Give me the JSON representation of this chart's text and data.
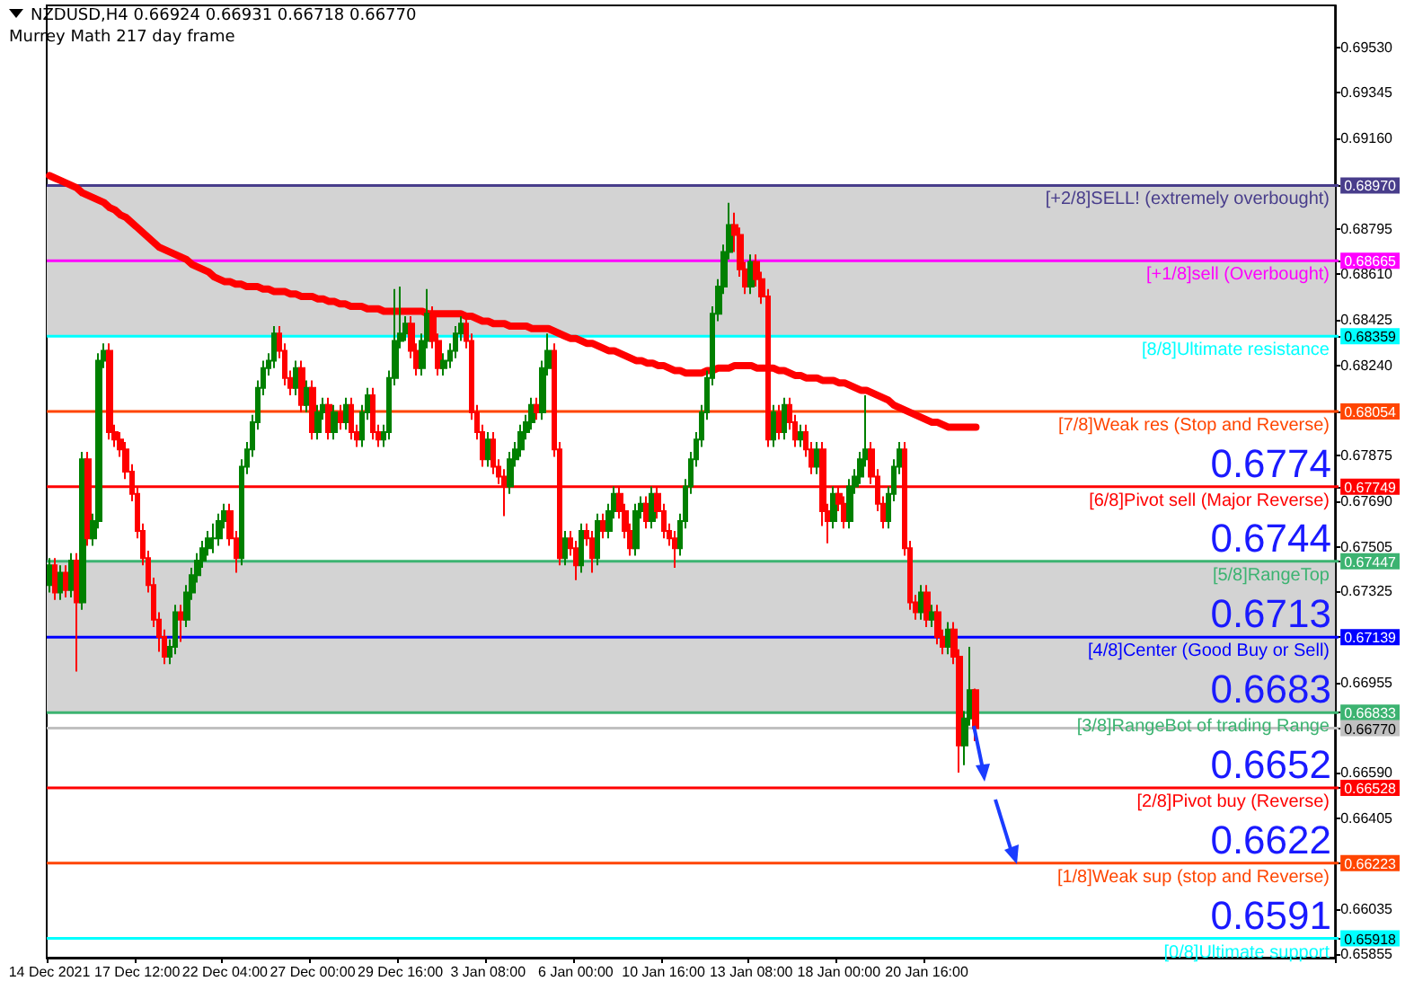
{
  "chart_data": {
    "type": "candlestick",
    "title": "NZDUSD,H4  0.66924 0.66931 0.66718 0.66770",
    "subtitle": "Murrey Math 217 day frame",
    "categories": [
      "14 Dec 2021",
      null,
      null,
      null,
      null,
      null,
      null,
      null,
      null,
      null,
      null,
      null,
      null,
      null,
      null,
      null,
      "17 Dec 12:00",
      null,
      null,
      null,
      null,
      null,
      null,
      null,
      null,
      null,
      null,
      null,
      null,
      null,
      null,
      null,
      "22 Dec 04:00",
      null,
      null,
      null,
      null,
      null,
      null,
      null,
      null,
      null,
      null,
      null,
      null,
      null,
      null,
      null,
      "27 Dec 00:00",
      null,
      null,
      null,
      null,
      null,
      null,
      null,
      null,
      null,
      null,
      null,
      null,
      null,
      null,
      null,
      "29 Dec 16:00",
      null,
      null,
      null,
      null,
      null,
      null,
      null,
      null,
      null,
      null,
      null,
      null,
      null,
      null,
      null,
      "3 Jan 08:00",
      null,
      null,
      null,
      null,
      null,
      null,
      null,
      null,
      null,
      null,
      null,
      null,
      null,
      null,
      null,
      "6 Jan 00:00",
      null,
      null,
      null,
      null,
      null,
      null,
      null,
      null,
      null,
      null,
      null,
      null,
      null,
      null,
      null,
      "10 Jan 16:00",
      null,
      null,
      null,
      null,
      null,
      null,
      null,
      null,
      null,
      null,
      null,
      null,
      null,
      null,
      null,
      "13 Jan 08:00",
      null,
      null,
      null,
      null,
      null,
      null,
      null,
      null,
      null,
      null,
      null,
      null,
      null,
      null,
      null,
      "18 Jan 00:00",
      null,
      null,
      null,
      null,
      null,
      null,
      null,
      null,
      null,
      null,
      null,
      null,
      null,
      null,
      null,
      "20 Jan 16:00",
      null,
      null,
      null,
      null,
      null,
      null,
      null,
      null,
      null
    ],
    "series": [
      {
        "type": "line",
        "color": "#ff0000",
        "values": [
          0.6901,
          0.69,
          0.6899,
          0.6898,
          0.6897,
          0.6896,
          0.6894,
          0.6893,
          0.6892,
          0.6891,
          0.689,
          0.6888,
          0.6887,
          0.6885,
          0.6884,
          0.6882,
          0.688,
          0.6878,
          0.6876,
          0.6874,
          0.6872,
          0.6871,
          0.687,
          0.6869,
          0.6868,
          0.6867,
          0.6865,
          0.6864,
          0.6863,
          0.6862,
          0.686,
          0.6859,
          0.6858,
          0.6858,
          0.6857,
          0.6857,
          0.6856,
          0.6856,
          0.6856,
          0.6855,
          0.6855,
          0.6854,
          0.6854,
          0.6854,
          0.6853,
          0.6853,
          0.6852,
          0.6852,
          0.6852,
          0.6851,
          0.6851,
          0.685,
          0.685,
          0.6849,
          0.6849,
          0.6848,
          0.6848,
          0.6848,
          0.6847,
          0.6847,
          0.6847,
          0.6846,
          0.6846,
          0.6846,
          0.6846,
          0.6846,
          0.6846,
          0.6846,
          0.6846,
          0.6845,
          0.6845,
          0.6845,
          0.6845,
          0.6845,
          0.6845,
          0.6845,
          0.6844,
          0.6844,
          0.6843,
          0.6842,
          0.6842,
          0.6841,
          0.6841,
          0.6841,
          0.684,
          0.684,
          0.684,
          0.684,
          0.6839,
          0.6839,
          0.6839,
          0.6839,
          0.6838,
          0.6837,
          0.6836,
          0.6835,
          0.6835,
          0.6834,
          0.6833,
          0.6833,
          0.6832,
          0.6831,
          0.683,
          0.683,
          0.6829,
          0.6828,
          0.6827,
          0.6826,
          0.6826,
          0.6825,
          0.6825,
          0.6824,
          0.6824,
          0.6823,
          0.6822,
          0.6822,
          0.6821,
          0.6821,
          0.6821,
          0.6821,
          0.6822,
          0.6822,
          0.6823,
          0.6823,
          0.6823,
          0.6824,
          0.6824,
          0.6824,
          0.6824,
          0.6823,
          0.6823,
          0.6823,
          0.6823,
          0.6822,
          0.6822,
          0.6821,
          0.682,
          0.682,
          0.6819,
          0.6819,
          0.6819,
          0.6818,
          0.6818,
          0.6818,
          0.6817,
          0.6817,
          0.6816,
          0.6815,
          0.6814,
          0.6814,
          0.6813,
          0.6812,
          0.6811,
          0.681,
          0.6808,
          0.6807,
          0.6806,
          0.6805,
          0.6804,
          0.6803,
          0.6802,
          0.6801,
          0.6801,
          0.68,
          0.6799,
          0.6799,
          0.6799,
          0.6799,
          0.6799,
          0.6799
        ]
      },
      {
        "type": "candlestick",
        "colors": [
          "#008000",
          "#ff0000",
          "#008000",
          "#ff0000",
          "#008000",
          "#ff0000",
          "#008000",
          "#ff0000",
          "#008000",
          "#008000",
          "#008000",
          "#ff0000",
          "#ff0000",
          "#ff0000",
          "#ff0000",
          "#ff0000",
          "#ff0000",
          "#ff0000",
          "#ff0000",
          "#ff0000",
          "#ff0000",
          "#ff0000",
          "#008000",
          "#008000",
          "#ff0000",
          "#008000",
          "#008000",
          "#008000",
          "#008000",
          "#008000",
          "#008000",
          "#008000",
          "#008000",
          "#ff0000",
          "#ff0000",
          "#008000",
          "#008000",
          "#008000",
          "#008000",
          "#008000",
          "#008000",
          "#008000",
          "#ff0000",
          "#ff0000",
          "#ff0000",
          "#008000",
          "#ff0000",
          "#008000",
          "#ff0000",
          "#008000",
          "#008000",
          "#ff0000",
          "#008000",
          "#ff0000",
          "#008000",
          "#ff0000",
          "#ff0000",
          "#008000",
          "#008000",
          "#ff0000",
          "#ff0000",
          "#008000",
          "#008000",
          "#008000",
          "#008000",
          "#008000",
          "#ff0000",
          "#ff0000",
          "#008000",
          "#008000",
          "#ff0000",
          "#ff0000",
          "#008000",
          "#008000",
          "#008000",
          "#008000",
          "#ff0000",
          "#ff0000",
          "#ff0000",
          "#ff0000",
          "#008000",
          "#ff0000",
          "#ff0000",
          "#ff0000",
          "#008000",
          "#008000",
          "#008000",
          "#008000",
          "#008000",
          "#ff0000",
          "#008000",
          "#008000",
          "#ff0000",
          "#ff0000",
          "#008000",
          "#ff0000",
          "#ff0000",
          "#008000",
          "#ff0000",
          "#ff0000",
          "#008000",
          "#ff0000",
          "#008000",
          "#008000",
          "#ff0000",
          "#ff0000",
          "#ff0000",
          "#008000",
          "#008000",
          "#ff0000",
          "#008000",
          "#ff0000",
          "#ff0000",
          "#ff0000",
          "#ff0000",
          "#008000",
          "#008000",
          "#008000",
          "#008000",
          "#008000",
          "#008000",
          "#008000",
          "#008000",
          "#008000",
          "#008000",
          "#ff0000",
          "#ff0000",
          "#ff0000",
          "#008000",
          "#ff0000",
          "#ff0000",
          "#ff0000",
          "#008000",
          "#ff0000",
          "#008000",
          "#ff0000",
          "#ff0000",
          "#008000",
          "#ff0000",
          "#ff0000",
          "#008000",
          "#ff0000",
          "#ff0000",
          "#008000",
          "#ff0000",
          "#ff0000",
          "#008000",
          "#008000",
          "#008000",
          "#008000",
          "#ff0000",
          "#ff0000",
          "#ff0000",
          "#008000",
          "#008000",
          "#008000",
          "#ff0000",
          "#ff0000",
          "#ff0000",
          "#008000",
          "#ff0000",
          "#008000",
          "#ff0000",
          "#ff0000",
          "#008000",
          "#ff0000",
          "#ff0000",
          "#008000",
          "#008000",
          "#ff0000"
        ],
        "ohlc": [
          [
            0.6735,
            0.6746,
            0.6732,
            0.6743
          ],
          [
            0.6743,
            0.6746,
            0.6729,
            0.6732
          ],
          [
            0.6732,
            0.6743,
            0.6729,
            0.674
          ],
          [
            0.674,
            0.6743,
            0.673,
            0.6733
          ],
          [
            0.6733,
            0.6748,
            0.673,
            0.6745
          ],
          [
            0.6745,
            0.6748,
            0.67,
            0.6728
          ],
          [
            0.6728,
            0.6789,
            0.6725,
            0.6786
          ],
          [
            0.6786,
            0.6789,
            0.6751,
            0.6754
          ],
          [
            0.6754,
            0.6764,
            0.6751,
            0.6761
          ],
          [
            0.6761,
            0.6829,
            0.6758,
            0.6826
          ],
          [
            0.6826,
            0.6833,
            0.6823,
            0.683
          ],
          [
            0.683,
            0.6833,
            0.6794,
            0.6797
          ],
          [
            0.6797,
            0.68,
            0.6791,
            0.6794
          ],
          [
            0.6794,
            0.6797,
            0.6787,
            0.679
          ],
          [
            0.679,
            0.6793,
            0.6778,
            0.6781
          ],
          [
            0.6781,
            0.6784,
            0.6769,
            0.6772
          ],
          [
            0.6772,
            0.6775,
            0.6754,
            0.6757
          ],
          [
            0.6757,
            0.676,
            0.6743,
            0.6746
          ],
          [
            0.6746,
            0.6749,
            0.6732,
            0.6735
          ],
          [
            0.6735,
            0.6738,
            0.6718,
            0.6721
          ],
          [
            0.6721,
            0.6724,
            0.6708,
            0.6714
          ],
          [
            0.6714,
            0.6717,
            0.6703,
            0.6706
          ],
          [
            0.6706,
            0.6713,
            0.6703,
            0.671
          ],
          [
            0.671,
            0.6727,
            0.6707,
            0.6724
          ],
          [
            0.6724,
            0.6727,
            0.6712,
            0.6721
          ],
          [
            0.6721,
            0.6735,
            0.6718,
            0.6732
          ],
          [
            0.6732,
            0.6742,
            0.6729,
            0.6739
          ],
          [
            0.6739,
            0.6748,
            0.6736,
            0.6745
          ],
          [
            0.6745,
            0.6753,
            0.6742,
            0.675
          ],
          [
            0.675,
            0.6757,
            0.6747,
            0.6754
          ],
          [
            0.6754,
            0.676,
            0.6748,
            0.6754
          ],
          [
            0.6754,
            0.6764,
            0.6751,
            0.6761
          ],
          [
            0.6761,
            0.6768,
            0.6758,
            0.6765
          ],
          [
            0.6765,
            0.6768,
            0.6751,
            0.6754
          ],
          [
            0.6754,
            0.6757,
            0.674,
            0.6746
          ],
          [
            0.6746,
            0.6786,
            0.6743,
            0.6783
          ],
          [
            0.6783,
            0.6793,
            0.678,
            0.679
          ],
          [
            0.679,
            0.6804,
            0.6787,
            0.6801
          ],
          [
            0.6801,
            0.6818,
            0.6798,
            0.6815
          ],
          [
            0.6815,
            0.6826,
            0.6812,
            0.6823
          ],
          [
            0.6823,
            0.6829,
            0.682,
            0.6826
          ],
          [
            0.6826,
            0.684,
            0.6823,
            0.6837
          ],
          [
            0.6837,
            0.684,
            0.6827,
            0.683
          ],
          [
            0.683,
            0.6833,
            0.6816,
            0.6819
          ],
          [
            0.6819,
            0.6822,
            0.6812,
            0.6815
          ],
          [
            0.6815,
            0.6826,
            0.6812,
            0.6823
          ],
          [
            0.6823,
            0.6826,
            0.6805,
            0.6808
          ],
          [
            0.6808,
            0.6818,
            0.6805,
            0.6815
          ],
          [
            0.6815,
            0.6818,
            0.6794,
            0.6797
          ],
          [
            0.6797,
            0.6808,
            0.6794,
            0.6805
          ],
          [
            0.6805,
            0.6811,
            0.6802,
            0.6808
          ],
          [
            0.6808,
            0.6811,
            0.6794,
            0.6797
          ],
          [
            0.6797,
            0.6808,
            0.6794,
            0.6805
          ],
          [
            0.6805,
            0.6808,
            0.6798,
            0.6801
          ],
          [
            0.6801,
            0.6811,
            0.6798,
            0.6808
          ],
          [
            0.6808,
            0.6811,
            0.6794,
            0.6797
          ],
          [
            0.6797,
            0.68,
            0.6791,
            0.6794
          ],
          [
            0.6794,
            0.6808,
            0.6791,
            0.6805
          ],
          [
            0.6805,
            0.6815,
            0.6802,
            0.6812
          ],
          [
            0.6812,
            0.6815,
            0.6794,
            0.6797
          ],
          [
            0.6797,
            0.68,
            0.6791,
            0.6794
          ],
          [
            0.6794,
            0.68,
            0.6791,
            0.6797
          ],
          [
            0.6797,
            0.6822,
            0.6794,
            0.6819
          ],
          [
            0.6819,
            0.6855,
            0.6816,
            0.6834
          ],
          [
            0.6834,
            0.6856,
            0.6831,
            0.6837
          ],
          [
            0.6837,
            0.6844,
            0.6834,
            0.6841
          ],
          [
            0.6841,
            0.6844,
            0.6827,
            0.683
          ],
          [
            0.683,
            0.6833,
            0.682,
            0.6823
          ],
          [
            0.6823,
            0.6837,
            0.682,
            0.6834
          ],
          [
            0.6834,
            0.6855,
            0.6831,
            0.6845
          ],
          [
            0.6845,
            0.6848,
            0.6831,
            0.6834
          ],
          [
            0.6834,
            0.6837,
            0.682,
            0.6823
          ],
          [
            0.6823,
            0.6829,
            0.682,
            0.6826
          ],
          [
            0.6826,
            0.6833,
            0.6823,
            0.683
          ],
          [
            0.683,
            0.684,
            0.6827,
            0.6837
          ],
          [
            0.6837,
            0.6844,
            0.6834,
            0.6841
          ],
          [
            0.6841,
            0.6844,
            0.6831,
            0.6834
          ],
          [
            0.6834,
            0.6837,
            0.6802,
            0.6805
          ],
          [
            0.6805,
            0.6808,
            0.6794,
            0.6797
          ],
          [
            0.6797,
            0.68,
            0.6783,
            0.6786
          ],
          [
            0.6786,
            0.6797,
            0.6783,
            0.6794
          ],
          [
            0.6794,
            0.6797,
            0.678,
            0.6783
          ],
          [
            0.6783,
            0.6786,
            0.6776,
            0.6779
          ],
          [
            0.6779,
            0.6782,
            0.6763,
            0.6775
          ],
          [
            0.6775,
            0.6789,
            0.6772,
            0.6786
          ],
          [
            0.6786,
            0.6793,
            0.6783,
            0.679
          ],
          [
            0.679,
            0.68,
            0.6787,
            0.6797
          ],
          [
            0.6797,
            0.6804,
            0.6794,
            0.6801
          ],
          [
            0.6801,
            0.6811,
            0.6798,
            0.6808
          ],
          [
            0.6808,
            0.6811,
            0.6802,
            0.6805
          ],
          [
            0.6805,
            0.6826,
            0.6802,
            0.6823
          ],
          [
            0.6823,
            0.6837,
            0.682,
            0.683
          ],
          [
            0.683,
            0.6833,
            0.6787,
            0.679
          ],
          [
            0.679,
            0.6793,
            0.6743,
            0.6746
          ],
          [
            0.6746,
            0.6757,
            0.6743,
            0.6754
          ],
          [
            0.6754,
            0.6757,
            0.6747,
            0.675
          ],
          [
            0.675,
            0.6753,
            0.6737,
            0.6743
          ],
          [
            0.6743,
            0.676,
            0.674,
            0.6757
          ],
          [
            0.6757,
            0.676,
            0.6751,
            0.6754
          ],
          [
            0.6754,
            0.6757,
            0.674,
            0.6746
          ],
          [
            0.6746,
            0.6764,
            0.6743,
            0.6761
          ],
          [
            0.6761,
            0.6764,
            0.6754,
            0.6757
          ],
          [
            0.6757,
            0.6768,
            0.6754,
            0.6765
          ],
          [
            0.6765,
            0.6775,
            0.6762,
            0.6772
          ],
          [
            0.6772,
            0.6775,
            0.6762,
            0.6765
          ],
          [
            0.6765,
            0.6768,
            0.6754,
            0.6757
          ],
          [
            0.6757,
            0.676,
            0.6747,
            0.675
          ],
          [
            0.675,
            0.6768,
            0.6747,
            0.6765
          ],
          [
            0.6765,
            0.6771,
            0.6762,
            0.6768
          ],
          [
            0.6768,
            0.6771,
            0.6758,
            0.6761
          ],
          [
            0.6761,
            0.6775,
            0.6758,
            0.6772
          ],
          [
            0.6772,
            0.6775,
            0.6762,
            0.6765
          ],
          [
            0.6765,
            0.6768,
            0.6754,
            0.6757
          ],
          [
            0.6757,
            0.676,
            0.6751,
            0.6754
          ],
          [
            0.6754,
            0.6757,
            0.6742,
            0.675
          ],
          [
            0.675,
            0.6764,
            0.6747,
            0.6761
          ],
          [
            0.6761,
            0.6778,
            0.6758,
            0.6775
          ],
          [
            0.6775,
            0.6789,
            0.6772,
            0.6786
          ],
          [
            0.6786,
            0.6797,
            0.6783,
            0.6794
          ],
          [
            0.6794,
            0.6808,
            0.6791,
            0.6805
          ],
          [
            0.6805,
            0.6822,
            0.6802,
            0.6819
          ],
          [
            0.6819,
            0.6848,
            0.6816,
            0.6845
          ],
          [
            0.6845,
            0.6859,
            0.6842,
            0.6856
          ],
          [
            0.6856,
            0.6873,
            0.6853,
            0.687
          ],
          [
            0.687,
            0.689,
            0.6867,
            0.6881
          ],
          [
            0.6881,
            0.6886,
            0.687,
            0.6877
          ],
          [
            0.6877,
            0.688,
            0.686,
            0.6863
          ],
          [
            0.6863,
            0.6866,
            0.6853,
            0.6856
          ],
          [
            0.6856,
            0.6869,
            0.6853,
            0.6866
          ],
          [
            0.6866,
            0.6869,
            0.6856,
            0.6859
          ],
          [
            0.6859,
            0.6862,
            0.6849,
            0.6852
          ],
          [
            0.6852,
            0.6855,
            0.6791,
            0.6794
          ],
          [
            0.6794,
            0.6808,
            0.6791,
            0.6805
          ],
          [
            0.6805,
            0.6808,
            0.6794,
            0.6797
          ],
          [
            0.6797,
            0.6811,
            0.6794,
            0.6808
          ],
          [
            0.6808,
            0.6811,
            0.6798,
            0.6801
          ],
          [
            0.6801,
            0.6804,
            0.6791,
            0.6794
          ],
          [
            0.6794,
            0.68,
            0.6791,
            0.6797
          ],
          [
            0.6797,
            0.68,
            0.6787,
            0.679
          ],
          [
            0.679,
            0.6793,
            0.678,
            0.6783
          ],
          [
            0.6783,
            0.6793,
            0.678,
            0.679
          ],
          [
            0.679,
            0.6793,
            0.6759,
            0.6765
          ],
          [
            0.6765,
            0.6768,
            0.6752,
            0.6761
          ],
          [
            0.6761,
            0.6775,
            0.6758,
            0.6772
          ],
          [
            0.6772,
            0.6775,
            0.6765,
            0.6768
          ],
          [
            0.6768,
            0.6771,
            0.6758,
            0.6761
          ],
          [
            0.6761,
            0.6778,
            0.6758,
            0.6775
          ],
          [
            0.6775,
            0.6782,
            0.6772,
            0.6779
          ],
          [
            0.6779,
            0.6789,
            0.6776,
            0.6786
          ],
          [
            0.6786,
            0.6812,
            0.6783,
            0.679
          ],
          [
            0.679,
            0.6793,
            0.6776,
            0.6779
          ],
          [
            0.6779,
            0.6782,
            0.6765,
            0.6768
          ],
          [
            0.6768,
            0.6771,
            0.6758,
            0.6761
          ],
          [
            0.6761,
            0.6775,
            0.6758,
            0.6772
          ],
          [
            0.6772,
            0.6786,
            0.6769,
            0.6783
          ],
          [
            0.6783,
            0.6793,
            0.678,
            0.679
          ],
          [
            0.679,
            0.6793,
            0.6747,
            0.675
          ],
          [
            0.675,
            0.6753,
            0.6725,
            0.6728
          ],
          [
            0.6728,
            0.6731,
            0.6721,
            0.6724
          ],
          [
            0.6724,
            0.6735,
            0.6721,
            0.6732
          ],
          [
            0.6732,
            0.6735,
            0.6718,
            0.6721
          ],
          [
            0.6721,
            0.6727,
            0.6718,
            0.6724
          ],
          [
            0.6724,
            0.6727,
            0.6711,
            0.6714
          ],
          [
            0.6714,
            0.6717,
            0.6707,
            0.671
          ],
          [
            0.671,
            0.672,
            0.6707,
            0.6717
          ],
          [
            0.6717,
            0.672,
            0.6703,
            0.6706
          ],
          [
            0.6706,
            0.6709,
            0.6659,
            0.667
          ],
          [
            0.667,
            0.6684,
            0.6662,
            0.6681
          ],
          [
            0.6681,
            0.671,
            0.6678,
            0.66924
          ],
          [
            0.66924,
            0.66931,
            0.66718,
            0.6677
          ]
        ]
      }
    ],
    "ylim": [
      0.6584,
      0.697
    ],
    "yticks": [
      {
        "value": 0.6953,
        "label": "0.69530"
      },
      {
        "value": 0.69345,
        "label": "0.69345"
      },
      {
        "value": 0.6916,
        "label": "0.69160"
      },
      {
        "value": 0.68795,
        "label": "0.68795"
      },
      {
        "value": 0.6861,
        "label": "0.68610"
      },
      {
        "value": 0.68425,
        "label": "0.68425"
      },
      {
        "value": 0.6824,
        "label": "0.68240"
      },
      {
        "value": 0.67875,
        "label": "0.67875"
      },
      {
        "value": 0.6769,
        "label": "0.67690"
      },
      {
        "value": 0.67505,
        "label": "0.67505"
      },
      {
        "value": 0.67325,
        "label": "0.67325"
      },
      {
        "value": 0.66955,
        "label": "0.66955"
      },
      {
        "value": 0.6659,
        "label": "0.66590"
      },
      {
        "value": 0.66405,
        "label": "0.66405"
      },
      {
        "value": 0.66035,
        "label": "0.66035"
      },
      {
        "value": 0.65855,
        "label": "0.65855"
      },
      {
        "value": 0.6897,
        "label": "0.68970"
      },
      {
        "value": 0.68665,
        "label": "0.68665"
      },
      {
        "value": 0.68359,
        "label": "0.68359"
      },
      {
        "value": 0.68054,
        "label": "0.68054"
      },
      {
        "value": 0.67749,
        "label": "0.67749"
      },
      {
        "value": 0.67447,
        "label": "0.67447"
      },
      {
        "value": 0.67139,
        "label": "0.67139"
      },
      {
        "value": 0.66833,
        "label": "0.66833"
      },
      {
        "value": 0.6677,
        "label": "0.66770"
      },
      {
        "value": 0.66528,
        "label": "0.66528"
      },
      {
        "value": 0.66223,
        "label": "0.66223"
      },
      {
        "value": 0.65918,
        "label": "0.65918"
      }
    ],
    "bands": [
      {
        "axis": "y",
        "from": 0.68359,
        "to": 0.6897,
        "color": "#d3d3d3"
      },
      {
        "axis": "y",
        "from": 0.66833,
        "to": 0.67447,
        "color": "#d3d3d3"
      }
    ],
    "ref_lines": [
      {
        "axis": "y",
        "value": 0.6897,
        "label": "[+2/8]SELL! (extremely overbought)",
        "color": "#483d8b"
      },
      {
        "axis": "y",
        "value": 0.68665,
        "label": "[+1/8]sell (Overbought)",
        "color": "#ff00ff"
      },
      {
        "axis": "y",
        "value": 0.68359,
        "label": "[8/8]Ultimate resistance",
        "color": "#00ffff"
      },
      {
        "axis": "y",
        "value": 0.68054,
        "label": "[7/8]Weak res (Stop and Reverse)",
        "color": "#ff4500"
      },
      {
        "axis": "y",
        "value": 0.67749,
        "label": "[6/8]Pivot sell (Major Reverse)",
        "color": "#ff0000"
      },
      {
        "axis": "y",
        "value": 0.67447,
        "label": "[5/8]RangeTop",
        "color": "#3cb371"
      },
      {
        "axis": "y",
        "value": 0.67139,
        "label": "[4/8]Center (Good Buy or Sell)",
        "color": "#0000ff"
      },
      {
        "axis": "y",
        "value": 0.66833,
        "label": "[3/8]RangeBot of trading Range",
        "color": "#3cb371"
      },
      {
        "axis": "y",
        "value": 0.6677,
        "color": "#c0c0c0"
      },
      {
        "axis": "y",
        "value": 0.66528,
        "label": "[2/8]Pivot buy (Reverse)",
        "color": "#ff0000"
      },
      {
        "axis": "y",
        "value": 0.66223,
        "label": "[1/8]Weak sup (stop and Reverse)",
        "color": "#ff4500"
      },
      {
        "axis": "y",
        "value": 0.65918,
        "label": "[0/8]Ultimate support",
        "color": "#00ffff"
      }
    ],
    "annotations": [
      {
        "text": "0.6774",
        "y": 0.67749
      },
      {
        "text": "0.6744",
        "y": 0.67447
      },
      {
        "text": "0.6713",
        "y": 0.67139
      },
      {
        "text": "0.6683",
        "y": 0.66833
      },
      {
        "text": "0.6652",
        "y": 0.66528
      },
      {
        "text": "0.6622",
        "y": 0.66223
      },
      {
        "text": "0.6591",
        "y": 0.65918
      }
    ]
  }
}
